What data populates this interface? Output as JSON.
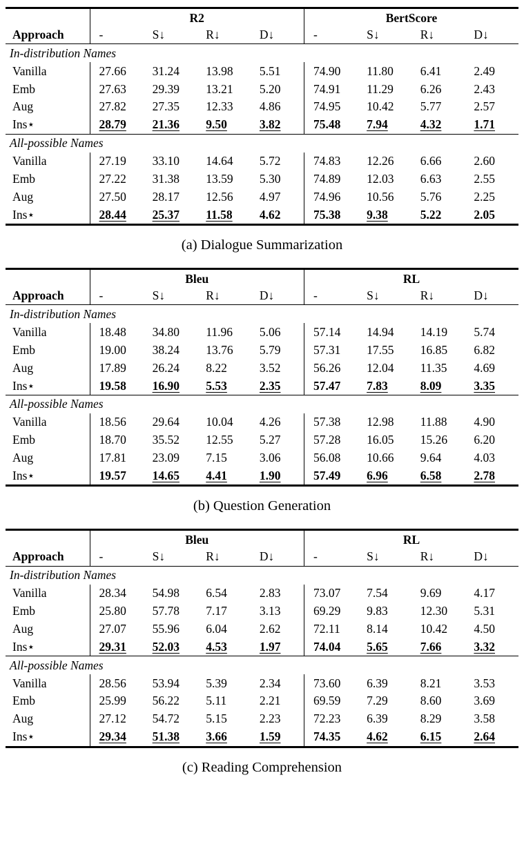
{
  "page": {
    "background_color": "#ffffff",
    "text_color": "#000000"
  },
  "tables": [
    {
      "id": "dialogue-summarization",
      "caption": "(a) Dialogue Summarization",
      "metric_groups": [
        "R2",
        "BertScore"
      ],
      "column_headers": [
        "Approach",
        "-",
        "S↓",
        "R↓",
        "D↓",
        "-",
        "S↓",
        "R↓",
        "D↓"
      ],
      "sections": [
        {
          "title": "In-distribution Names",
          "rows": [
            {
              "approach": "Vanilla",
              "bold": false,
              "underline": [],
              "values": [
                "27.66",
                "31.24",
                "13.98",
                "5.51",
                "74.90",
                "11.80",
                "6.41",
                "2.49"
              ]
            },
            {
              "approach": "Emb",
              "bold": false,
              "underline": [],
              "values": [
                "27.63",
                "29.39",
                "13.21",
                "5.20",
                "74.91",
                "11.29",
                "6.26",
                "2.43"
              ]
            },
            {
              "approach": "Aug",
              "bold": false,
              "underline": [],
              "values": [
                "27.82",
                "27.35",
                "12.33",
                "4.86",
                "74.95",
                "10.42",
                "5.77",
                "2.57"
              ]
            },
            {
              "approach": "Ins⋆",
              "bold": true,
              "underline": [
                0,
                1,
                2,
                3,
                5,
                6,
                7
              ],
              "values": [
                "28.79",
                "21.36",
                "9.50",
                "3.82",
                "75.48",
                "7.94",
                "4.32",
                "1.71"
              ]
            }
          ]
        },
        {
          "title": "All-possible Names",
          "rows": [
            {
              "approach": "Vanilla",
              "bold": false,
              "underline": [],
              "values": [
                "27.19",
                "33.10",
                "14.64",
                "5.72",
                "74.83",
                "12.26",
                "6.66",
                "2.60"
              ]
            },
            {
              "approach": "Emb",
              "bold": false,
              "underline": [],
              "values": [
                "27.22",
                "31.38",
                "13.59",
                "5.30",
                "74.89",
                "12.03",
                "6.63",
                "2.55"
              ]
            },
            {
              "approach": "Aug",
              "bold": false,
              "underline": [],
              "values": [
                "27.50",
                "28.17",
                "12.56",
                "4.97",
                "74.96",
                "10.56",
                "5.76",
                "2.25"
              ]
            },
            {
              "approach": "Ins⋆",
              "bold": true,
              "underline": [
                0,
                1,
                2,
                5
              ],
              "values": [
                "28.44",
                "25.37",
                "11.58",
                "4.62",
                "75.38",
                "9.38",
                "5.22",
                "2.05"
              ]
            }
          ]
        }
      ]
    },
    {
      "id": "question-generation",
      "caption": "(b) Question Generation",
      "metric_groups": [
        "Bleu",
        "RL"
      ],
      "column_headers": [
        "Approach",
        "-",
        "S↓",
        "R↓",
        "D↓",
        "-",
        "S↓",
        "R↓",
        "D↓"
      ],
      "sections": [
        {
          "title": "In-distribution Names",
          "rows": [
            {
              "approach": "Vanilla",
              "bold": false,
              "underline": [],
              "values": [
                "18.48",
                "34.80",
                "11.96",
                "5.06",
                "57.14",
                "14.94",
                "14.19",
                "5.74"
              ]
            },
            {
              "approach": "Emb",
              "bold": false,
              "underline": [],
              "values": [
                "19.00",
                "38.24",
                "13.76",
                "5.79",
                "57.31",
                "17.55",
                "16.85",
                "6.82"
              ]
            },
            {
              "approach": "Aug",
              "bold": false,
              "underline": [],
              "values": [
                "17.89",
                "26.24",
                "8.22",
                "3.52",
                "56.26",
                "12.04",
                "11.35",
                "4.69"
              ]
            },
            {
              "approach": "Ins⋆",
              "bold": true,
              "underline": [
                1,
                2,
                3,
                5,
                6,
                7
              ],
              "values": [
                "19.58",
                "16.90",
                "5.53",
                "2.35",
                "57.47",
                "7.83",
                "8.09",
                "3.35"
              ]
            }
          ]
        },
        {
          "title": "All-possible Names",
          "rows": [
            {
              "approach": "Vanilla",
              "bold": false,
              "underline": [],
              "values": [
                "18.56",
                "29.64",
                "10.04",
                "4.26",
                "57.38",
                "12.98",
                "11.88",
                "4.90"
              ]
            },
            {
              "approach": "Emb",
              "bold": false,
              "underline": [],
              "values": [
                "18.70",
                "35.52",
                "12.55",
                "5.27",
                "57.28",
                "16.05",
                "15.26",
                "6.20"
              ]
            },
            {
              "approach": "Aug",
              "bold": false,
              "underline": [],
              "values": [
                "17.81",
                "23.09",
                "7.15",
                "3.06",
                "56.08",
                "10.66",
                "9.64",
                "4.03"
              ]
            },
            {
              "approach": "Ins⋆",
              "bold": true,
              "underline": [
                1,
                2,
                3,
                5,
                6,
                7
              ],
              "values": [
                "19.57",
                "14.65",
                "4.41",
                "1.90",
                "57.49",
                "6.96",
                "6.58",
                "2.78"
              ]
            }
          ]
        }
      ]
    },
    {
      "id": "reading-comprehension",
      "caption": "(c) Reading Comprehension",
      "metric_groups": [
        "Bleu",
        "RL"
      ],
      "column_headers": [
        "Approach",
        "-",
        "S↓",
        "R↓",
        "D↓",
        "-",
        "S↓",
        "R↓",
        "D↓"
      ],
      "sections": [
        {
          "title": "In-distribution Names",
          "rows": [
            {
              "approach": "Vanilla",
              "bold": false,
              "underline": [],
              "values": [
                "28.34",
                "54.98",
                "6.54",
                "2.83",
                "73.07",
                "7.54",
                "9.69",
                "4.17"
              ]
            },
            {
              "approach": "Emb",
              "bold": false,
              "underline": [],
              "values": [
                "25.80",
                "57.78",
                "7.17",
                "3.13",
                "69.29",
                "9.83",
                "12.30",
                "5.31"
              ]
            },
            {
              "approach": "Aug",
              "bold": false,
              "underline": [],
              "values": [
                "27.07",
                "55.96",
                "6.04",
                "2.62",
                "72.11",
                "8.14",
                "10.42",
                "4.50"
              ]
            },
            {
              "approach": "Ins⋆",
              "bold": true,
              "underline": [
                0,
                1,
                2,
                3,
                5,
                6,
                7
              ],
              "values": [
                "29.31",
                "52.03",
                "4.53",
                "1.97",
                "74.04",
                "5.65",
                "7.66",
                "3.32"
              ]
            }
          ]
        },
        {
          "title": "All-possible Names",
          "rows": [
            {
              "approach": "Vanilla",
              "bold": false,
              "underline": [],
              "values": [
                "28.56",
                "53.94",
                "5.39",
                "2.34",
                "73.60",
                "6.39",
                "8.21",
                "3.53"
              ]
            },
            {
              "approach": "Emb",
              "bold": false,
              "underline": [],
              "values": [
                "25.99",
                "56.22",
                "5.11",
                "2.21",
                "69.59",
                "7.29",
                "8.60",
                "3.69"
              ]
            },
            {
              "approach": "Aug",
              "bold": false,
              "underline": [],
              "values": [
                "27.12",
                "54.72",
                "5.15",
                "2.23",
                "72.23",
                "6.39",
                "8.29",
                "3.58"
              ]
            },
            {
              "approach": "Ins⋆",
              "bold": true,
              "underline": [
                0,
                1,
                2,
                3,
                5,
                6,
                7
              ],
              "values": [
                "29.34",
                "51.38",
                "3.66",
                "1.59",
                "74.35",
                "4.62",
                "6.15",
                "2.64"
              ]
            }
          ]
        }
      ]
    }
  ]
}
